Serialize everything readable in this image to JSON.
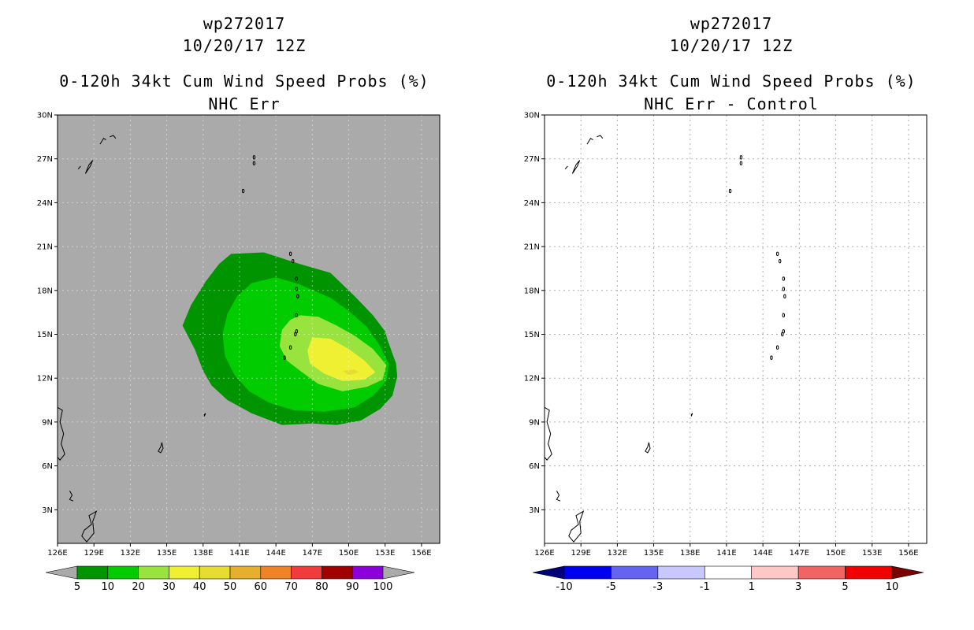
{
  "panels": [
    {
      "storm_id": "wp272017",
      "date": "10/20/17 12Z",
      "product": "0-120h 34kt Cum Wind Speed Probs (%)",
      "subtitle": "NHC Err",
      "background": "#aaaaaa"
    },
    {
      "storm_id": "wp272017",
      "date": "10/20/17 12Z",
      "product": "0-120h 34kt Cum Wind Speed Probs (%)",
      "subtitle": "NHC Err - Control",
      "background": "#ffffff"
    }
  ],
  "axes": {
    "x_ticks": [
      "126E",
      "129E",
      "132E",
      "135E",
      "138E",
      "141E",
      "144E",
      "147E",
      "150E",
      "153E",
      "156E"
    ],
    "x_values": [
      126,
      129,
      132,
      135,
      138,
      141,
      144,
      147,
      150,
      153,
      156
    ],
    "y_ticks": [
      "3N",
      "6N",
      "9N",
      "12N",
      "15N",
      "18N",
      "21N",
      "24N",
      "27N",
      "30N"
    ],
    "y_values": [
      3,
      6,
      9,
      12,
      15,
      18,
      21,
      24,
      27,
      30
    ],
    "lon_range": [
      126,
      157.5
    ],
    "lat_range": [
      0.7,
      30
    ]
  },
  "chart_data": [
    {
      "type": "heatmap",
      "title": "0-120h 34kt Cum Wind Speed Probs (%) — NHC Err",
      "variable": "cumulative 34kt wind speed probability",
      "units": "%",
      "storm_center_approx": {
        "lon": 150.0,
        "lat": 13.0
      },
      "contours": [
        {
          "level": 5,
          "color": "#009400",
          "points": [
            [
              140.3,
              20.5
            ],
            [
              143.0,
              20.6
            ],
            [
              146.0,
              19.8
            ],
            [
              148.5,
              19.2
            ],
            [
              150.5,
              17.6
            ],
            [
              152.0,
              16.3
            ],
            [
              153.0,
              15.2
            ],
            [
              153.2,
              14.6
            ],
            [
              153.9,
              13.0
            ],
            [
              154.0,
              12.1
            ],
            [
              153.6,
              10.8
            ],
            [
              152.6,
              9.9
            ],
            [
              151.0,
              9.1
            ],
            [
              149.0,
              8.8
            ],
            [
              147.0,
              8.9
            ],
            [
              144.5,
              8.8
            ],
            [
              142.0,
              9.6
            ],
            [
              140.0,
              10.5
            ],
            [
              138.7,
              11.5
            ],
            [
              138.0,
              12.5
            ],
            [
              137.3,
              14.0
            ],
            [
              136.3,
              15.6
            ],
            [
              137.0,
              17.0
            ],
            [
              138.2,
              18.6
            ],
            [
              139.3,
              19.8
            ]
          ]
        },
        {
          "level": 10,
          "color": "#00cc00",
          "points": [
            [
              142.0,
              18.5
            ],
            [
              144.0,
              18.9
            ],
            [
              146.0,
              18.4
            ],
            [
              148.5,
              17.5
            ],
            [
              150.0,
              16.6
            ],
            [
              151.5,
              15.5
            ],
            [
              152.5,
              14.3
            ],
            [
              153.3,
              13.0
            ],
            [
              153.1,
              11.8
            ],
            [
              152.0,
              10.8
            ],
            [
              150.5,
              10.0
            ],
            [
              148.0,
              9.7
            ],
            [
              145.5,
              9.8
            ],
            [
              143.5,
              10.3
            ],
            [
              141.8,
              11.1
            ],
            [
              140.6,
              12.2
            ],
            [
              139.8,
              13.5
            ],
            [
              139.6,
              15.0
            ],
            [
              140.0,
              16.4
            ],
            [
              140.8,
              17.6
            ]
          ]
        },
        {
          "level": 20,
          "color": "#99e33f",
          "points": [
            [
              146.0,
              16.3
            ],
            [
              147.5,
              16.2
            ],
            [
              149.0,
              15.6
            ],
            [
              150.5,
              14.9
            ],
            [
              152.0,
              14.0
            ],
            [
              153.1,
              12.9
            ],
            [
              152.8,
              11.9
            ],
            [
              151.5,
              11.4
            ],
            [
              149.5,
              11.1
            ],
            [
              147.5,
              11.6
            ],
            [
              146.0,
              12.5
            ],
            [
              144.9,
              13.2
            ],
            [
              144.3,
              14.2
            ],
            [
              144.5,
              15.3
            ],
            [
              145.2,
              16.0
            ]
          ]
        },
        {
          "level": 30,
          "color": "#f0f032",
          "points": [
            [
              147.0,
              14.8
            ],
            [
              148.5,
              14.7
            ],
            [
              150.0,
              14.0
            ],
            [
              151.3,
              13.2
            ],
            [
              152.2,
              12.4
            ],
            [
              151.3,
              11.9
            ],
            [
              149.5,
              11.8
            ],
            [
              148.0,
              12.3
            ],
            [
              146.8,
              13.0
            ],
            [
              146.6,
              13.9
            ]
          ]
        },
        {
          "level": 40,
          "color": "#e6dc32",
          "points": [
            [
              149.5,
              12.5
            ],
            [
              150.5,
              12.6
            ],
            [
              150.8,
              12.4
            ],
            [
              150.0,
              12.2
            ]
          ]
        }
      ],
      "legend": {
        "levels": [
          "5",
          "10",
          "20",
          "30",
          "40",
          "50",
          "60",
          "70",
          "80",
          "90",
          "100"
        ],
        "colors": [
          "#aaaaaa",
          "#009400",
          "#00cc00",
          "#99e33f",
          "#f0f032",
          "#e6dc32",
          "#e6af2d",
          "#f08228",
          "#f03c3c",
          "#a00000",
          "#8c00dc",
          "#aaaaaa"
        ]
      }
    },
    {
      "type": "heatmap",
      "title": "0-120h 34kt Cum Wind Speed Probs (%) — NHC Err - Control",
      "variable": "difference in cumulative probability",
      "units": "%",
      "contours": [],
      "legend": {
        "levels": [
          "-10",
          "-5",
          "-3",
          "-1",
          "1",
          "3",
          "5",
          "10"
        ],
        "colors": [
          "#000078",
          "#0000f0",
          "#6464f0",
          "#c8c8ff",
          "#ffffff",
          "#ffc8c8",
          "#f06464",
          "#f00000",
          "#780000"
        ]
      }
    }
  ]
}
